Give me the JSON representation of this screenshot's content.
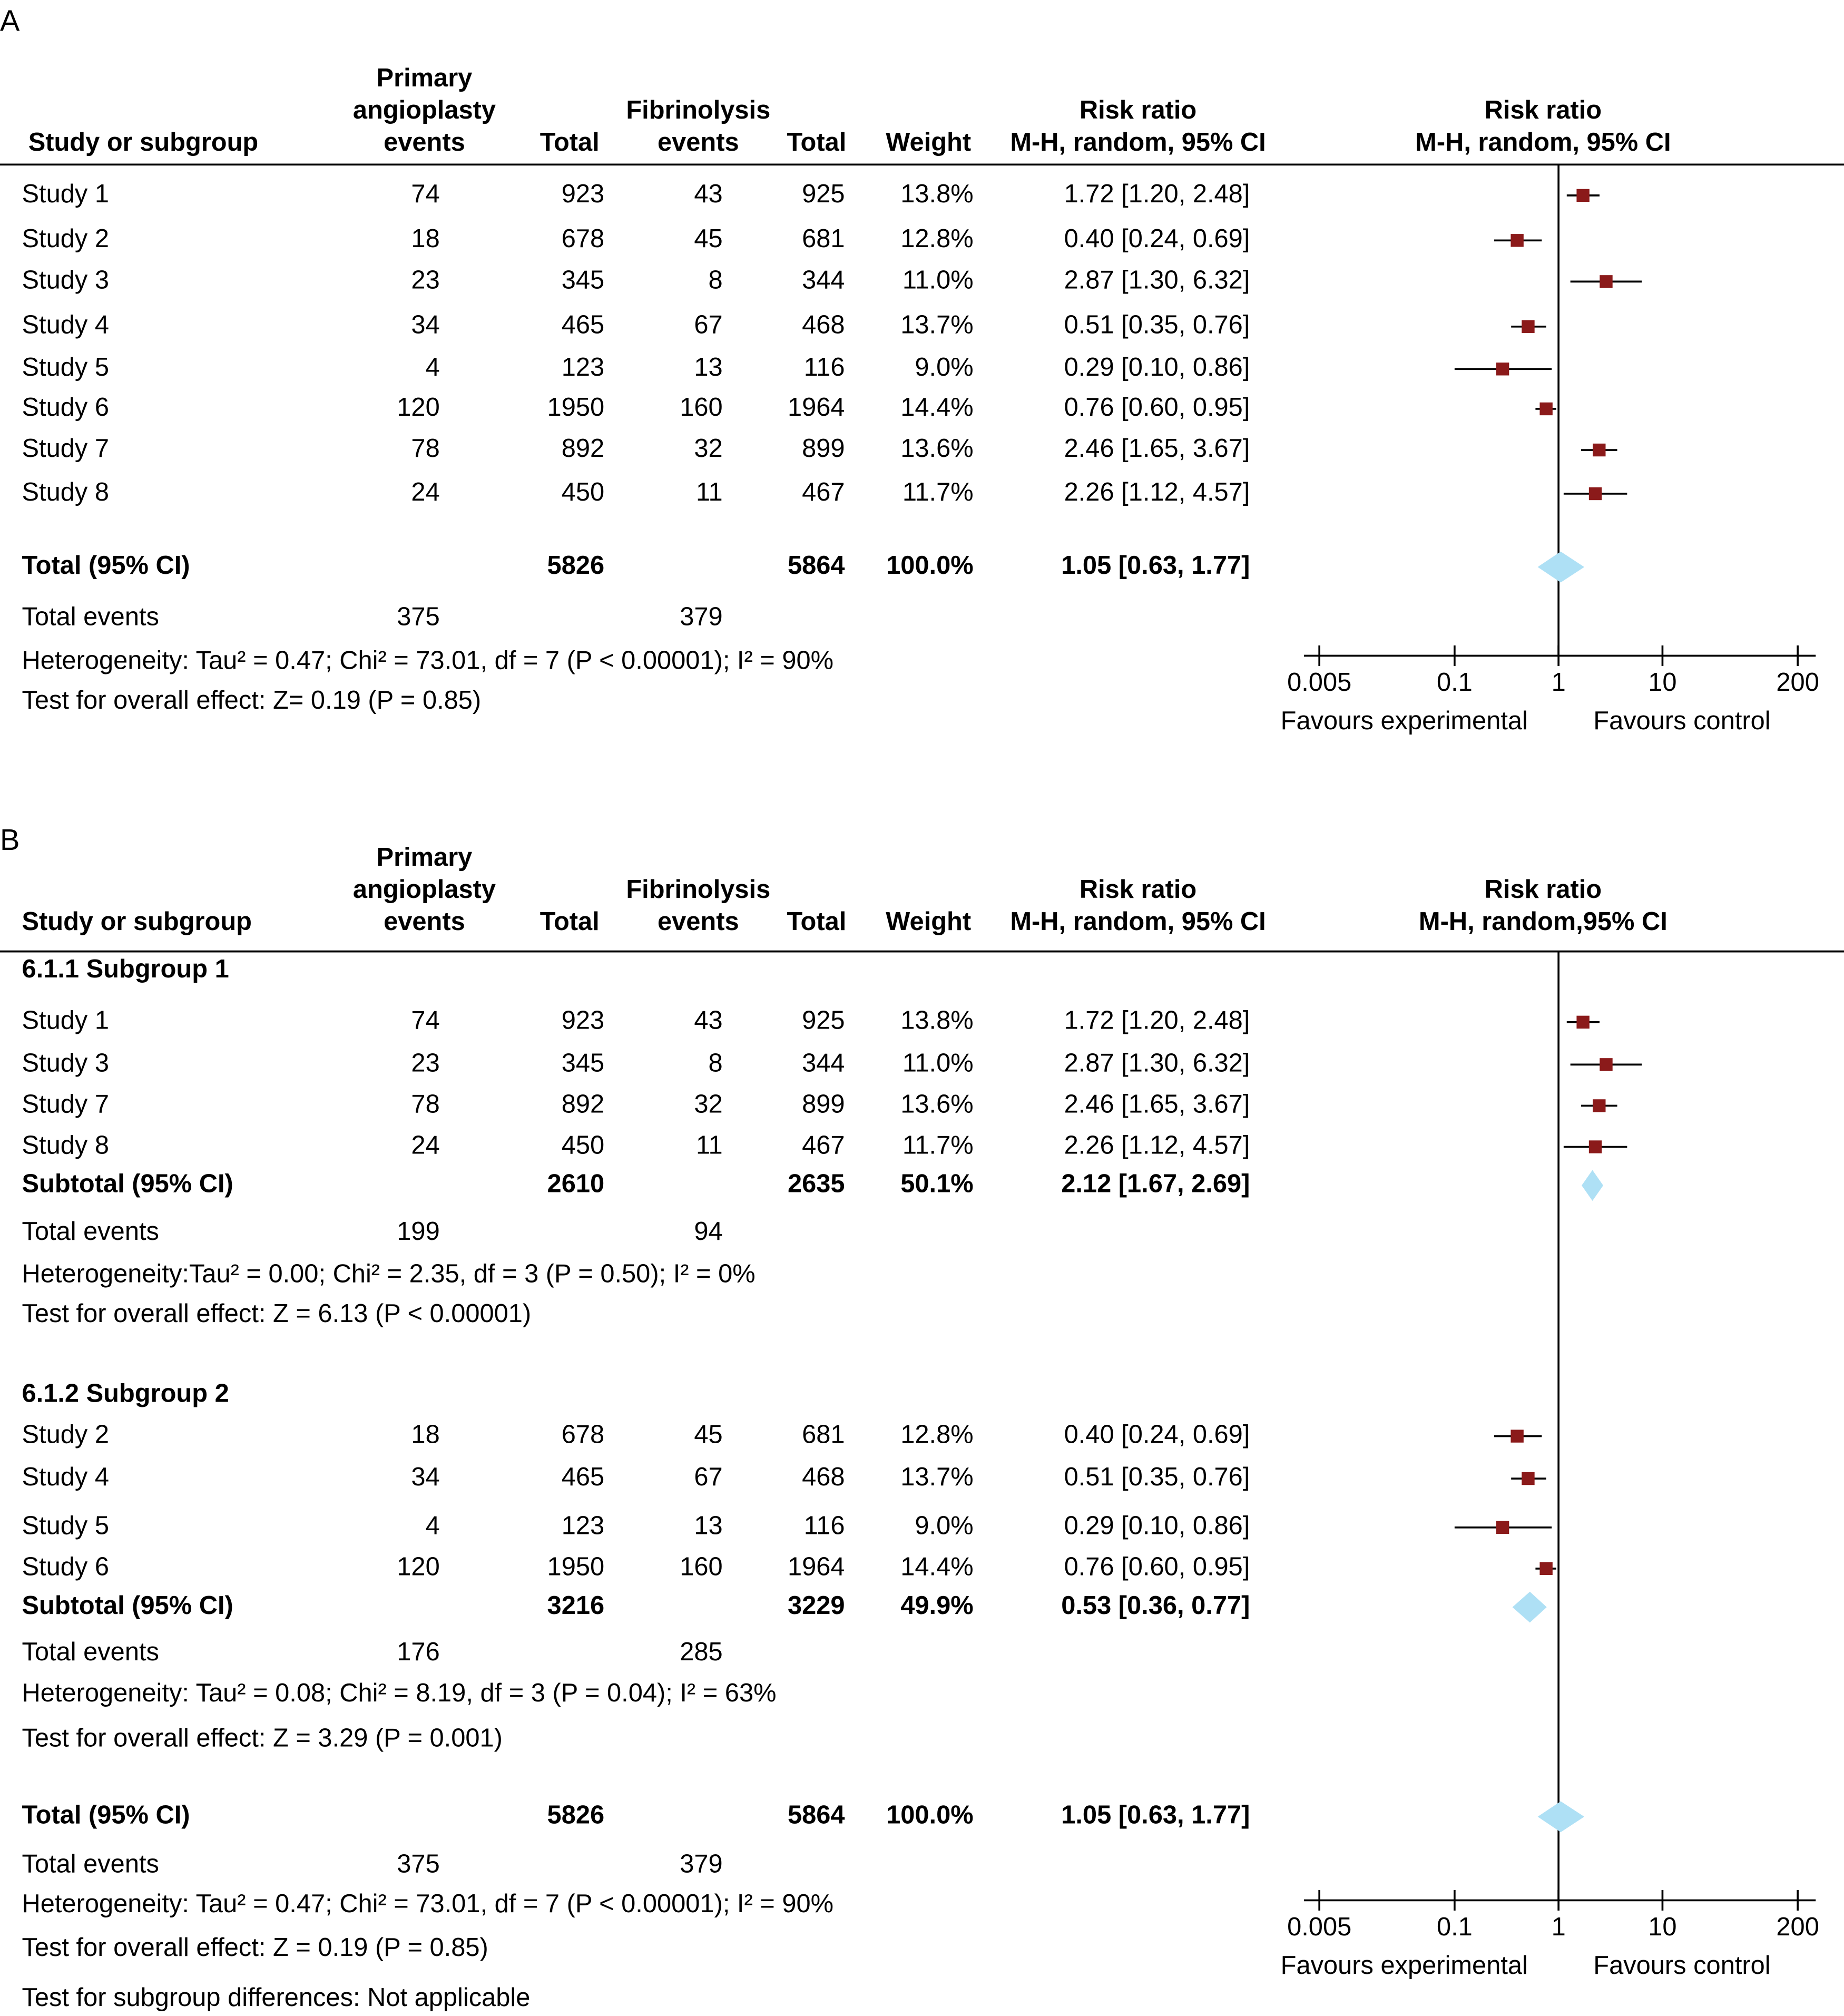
{
  "chart_data": [
    {
      "type": "forest",
      "panel": "A",
      "columns": [
        [
          "Study or subgroup"
        ],
        [
          "Primary",
          "angioplasty",
          "events"
        ],
        [
          "Total"
        ],
        [
          "Fibrinolysis",
          "events"
        ],
        [
          "Total"
        ],
        [
          "Weight"
        ],
        [
          "Risk ratio",
          "M-H, random, 95% CI"
        ]
      ],
      "plot_header": [
        "Risk ratio",
        "M-H, random, 95% CI"
      ],
      "groups": [
        {
          "rows": [
            [
              "Study 1",
              "74",
              "923",
              "43",
              "925",
              "13.8%",
              "1.72 [1.20, 2.48]"
            ],
            [
              "Study 2",
              "18",
              "678",
              "45",
              "681",
              "12.8%",
              "0.40 [0.24, 0.69]"
            ],
            [
              "Study 3",
              "23",
              "345",
              "8",
              "344",
              "11.0%",
              "2.87 [1.30, 6.32]"
            ],
            [
              "Study 4",
              "34",
              "465",
              "67",
              "468",
              "13.7%",
              "0.51 [0.35, 0.76]"
            ],
            [
              "Study 5",
              "4",
              "123",
              "13",
              "116",
              "9.0%",
              "0.29 [0.10, 0.86]"
            ],
            [
              "Study 6",
              "120",
              "1950",
              "160",
              "1964",
              "14.4%",
              "0.76 [0.60, 0.95]"
            ],
            [
              "Study 7",
              "78",
              "892",
              "32",
              "899",
              "13.6%",
              "2.46 [1.65, 3.67]"
            ],
            [
              "Study 8",
              "24",
              "450",
              "11",
              "467",
              "11.7%",
              "2.26 [1.12, 4.57]"
            ]
          ],
          "values": [
            1.72,
            0.4,
            2.87,
            0.51,
            0.29,
            0.76,
            2.46,
            2.26
          ],
          "lower": [
            1.2,
            0.24,
            1.3,
            0.35,
            0.1,
            0.6,
            1.65,
            1.12
          ],
          "upper": [
            2.48,
            0.69,
            6.32,
            0.76,
            0.86,
            0.95,
            3.67,
            4.57
          ]
        }
      ],
      "overall": {
        "label": "Total (95% CI)",
        "cells": [
          "5826",
          "5864",
          "100.0%",
          "1.05 [0.63, 1.77]"
        ],
        "value": 1.05,
        "lower": 0.63,
        "upper": 1.77
      },
      "total_events": {
        "label": "Total events",
        "cells": [
          "375",
          "379"
        ]
      },
      "notes": [
        "Heterogeneity: Tau² = 0.47; Chi² = 73.01, df = 7 (P < 0.00001); I² = 90%",
        "Test for overall effect: Z= 0.19 (P = 0.85)"
      ],
      "xscale": "log",
      "xlim": [
        0.005,
        200
      ],
      "xticks": [
        0.005,
        0.1,
        1,
        10,
        200
      ],
      "reference": 1,
      "xlabel_left": "Favours experimental",
      "xlabel_right": "Favours control",
      "marker_color": "#8b1a1a",
      "diamond_color": "#aee0f5"
    },
    {
      "type": "forest",
      "panel": "B",
      "columns": [
        [
          "Study or subgroup"
        ],
        [
          "Primary",
          "angioplasty",
          "events"
        ],
        [
          "Total"
        ],
        [
          "Fibrinolysis",
          "events"
        ],
        [
          "Total"
        ],
        [
          "Weight"
        ],
        [
          "Risk ratio",
          "M-H, random, 95% CI"
        ]
      ],
      "plot_header": [
        "Risk ratio",
        "M-H, random,95% CI"
      ],
      "groups": [
        {
          "name": "6.1.1 Subgroup 1",
          "rows": [
            [
              "Study 1",
              "74",
              "923",
              "43",
              "925",
              "13.8%",
              "1.72 [1.20, 2.48]"
            ],
            [
              "Study 3",
              "23",
              "345",
              "8",
              "344",
              "11.0%",
              "2.87 [1.30, 6.32]"
            ],
            [
              "Study 7",
              "78",
              "892",
              "32",
              "899",
              "13.6%",
              "2.46 [1.65, 3.67]"
            ],
            [
              "Study 8",
              "24",
              "450",
              "11",
              "467",
              "11.7%",
              "2.26 [1.12, 4.57]"
            ]
          ],
          "values": [
            1.72,
            2.87,
            2.46,
            2.26
          ],
          "lower": [
            1.2,
            1.3,
            1.65,
            1.12
          ],
          "upper": [
            2.48,
            6.32,
            3.67,
            4.57
          ],
          "subtotal": {
            "label": "Subtotal (95% CI)",
            "cells": [
              "2610",
              "2635",
              "50.1%",
              "2.12 [1.67, 2.69]"
            ],
            "value": 2.12,
            "lower": 1.67,
            "upper": 2.69
          },
          "total_events": {
            "label": "Total events",
            "cells": [
              "199",
              "94"
            ]
          },
          "notes": [
            "Heterogeneity:Tau² = 0.00; Chi² = 2.35, df = 3 (P = 0.50); I² = 0%",
            "Test for overall effect: Z = 6.13 (P < 0.00001)"
          ]
        },
        {
          "name": "6.1.2 Subgroup 2",
          "rows": [
            [
              "Study 2",
              "18",
              "678",
              "45",
              "681",
              "12.8%",
              "0.40 [0.24, 0.69]"
            ],
            [
              "Study 4",
              "34",
              "465",
              "67",
              "468",
              "13.7%",
              "0.51 [0.35, 0.76]"
            ],
            [
              "Study 5",
              "4",
              "123",
              "13",
              "116",
              "9.0%",
              "0.29 [0.10, 0.86]"
            ],
            [
              "Study 6",
              "120",
              "1950",
              "160",
              "1964",
              "14.4%",
              "0.76 [0.60, 0.95]"
            ]
          ],
          "values": [
            0.4,
            0.51,
            0.29,
            0.76
          ],
          "lower": [
            0.24,
            0.35,
            0.1,
            0.6
          ],
          "upper": [
            0.69,
            0.76,
            0.86,
            0.95
          ],
          "subtotal": {
            "label": "Subtotal (95% CI)",
            "cells": [
              "3216",
              "3229",
              "49.9%",
              "0.53 [0.36, 0.77]"
            ],
            "value": 0.53,
            "lower": 0.36,
            "upper": 0.77
          },
          "total_events": {
            "label": "Total events",
            "cells": [
              "176",
              "285"
            ]
          },
          "notes": [
            "Heterogeneity: Tau² = 0.08; Chi² = 8.19, df = 3 (P = 0.04); I² = 63%",
            "Test for overall effect: Z = 3.29 (P = 0.001)"
          ]
        }
      ],
      "overall": {
        "label": "Total (95% CI)",
        "cells": [
          "5826",
          "5864",
          "100.0%",
          "1.05 [0.63, 1.77]"
        ],
        "value": 1.05,
        "lower": 0.63,
        "upper": 1.77
      },
      "total_events": {
        "label": "Total events",
        "cells": [
          "375",
          "379"
        ]
      },
      "notes": [
        "Heterogeneity: Tau² = 0.47; Chi² = 73.01, df = 7 (P < 0.00001); I² = 90%",
        "Test for overall effect: Z = 0.19 (P = 0.85)",
        "Test for subgroup differences: Not applicable"
      ],
      "xscale": "log",
      "xlim": [
        0.005,
        200
      ],
      "xticks": [
        0.005,
        0.1,
        1,
        10,
        200
      ],
      "reference": 1,
      "xlabel_left": "Favours experimental",
      "xlabel_right": "Favours control",
      "marker_color": "#8b1a1a",
      "diamond_color": "#aee0f5"
    }
  ]
}
